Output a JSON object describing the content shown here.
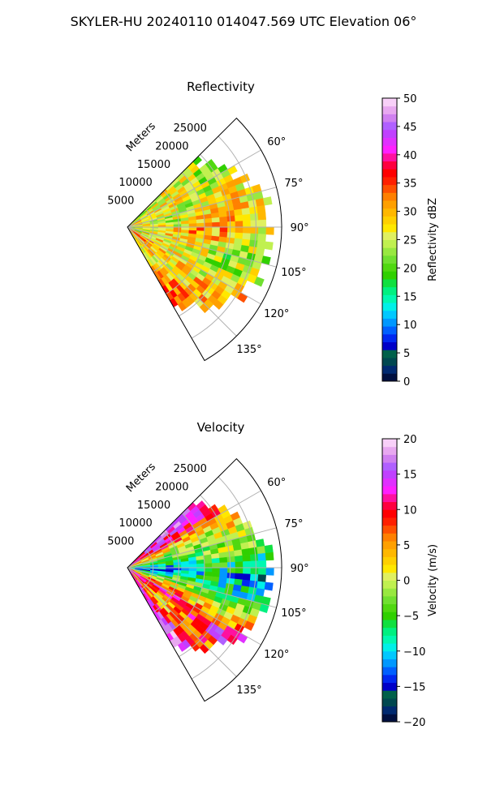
{
  "figure": {
    "suptitle": "SKYLER-HU  20240110  014047.569 UTC Elevation 06°"
  },
  "chart_data": [
    {
      "type": "heatmap",
      "projection": "polar-sector",
      "title": "Reflectivity",
      "radial_label": "Meters",
      "radial_ticks": [
        5000,
        10000,
        15000,
        20000,
        25000
      ],
      "radial_tick_labels": [
        "5000",
        "10000",
        "15000",
        "20000",
        "25000"
      ],
      "rlim": [
        0,
        30000
      ],
      "theta_range_deg": [
        45,
        150
      ],
      "theta_ticks_deg": [
        60,
        75,
        90,
        105,
        120,
        135
      ],
      "theta_tick_labels": [
        "60°",
        "75°",
        "90°",
        "105°",
        "120°",
        "135°"
      ],
      "grid": true,
      "colorbar": {
        "label": "Reflectivity dBZ",
        "vmin": 0,
        "vmax": 50,
        "ticks": [
          0,
          5,
          10,
          15,
          20,
          25,
          30,
          35,
          40,
          45,
          50
        ],
        "tick_labels": [
          "0",
          "5",
          "10",
          "15",
          "20",
          "25",
          "30",
          "35",
          "40",
          "45",
          "50"
        ],
        "colors": [
          "#001040",
          "#002a70",
          "#004850",
          "#00604a",
          "#0000c8",
          "#0028f0",
          "#0060ff",
          "#0098ff",
          "#00c8ff",
          "#00f0e8",
          "#00f8b0",
          "#00f080",
          "#10e040",
          "#30d000",
          "#50d810",
          "#70e030",
          "#98e840",
          "#c0f050",
          "#e0f060",
          "#ffe800",
          "#ffd000",
          "#ffb800",
          "#ffa000",
          "#ff8000",
          "#ff5000",
          "#ff2000",
          "#ff0000",
          "#ff0040",
          "#ff10a0",
          "#ff20ff",
          "#e030ff",
          "#c040ff",
          "#b060ff",
          "#d080f0",
          "#e8a8f0",
          "#f8d0f8"
        ]
      },
      "field_mean_by_azimuth": [
        {
          "azimuth": 55,
          "value": 24
        },
        {
          "azimuth": 65,
          "value": 27
        },
        {
          "azimuth": 75,
          "value": 26
        },
        {
          "azimuth": 85,
          "value": 29
        },
        {
          "azimuth": 95,
          "value": 28
        },
        {
          "azimuth": 105,
          "value": 25
        },
        {
          "azimuth": 115,
          "value": 26
        },
        {
          "azimuth": 125,
          "value": 30
        },
        {
          "azimuth": 135,
          "value": 29
        },
        {
          "azimuth": 145,
          "value": 30
        }
      ]
    },
    {
      "type": "heatmap",
      "projection": "polar-sector",
      "title": "Velocity",
      "radial_label": "Meters",
      "radial_ticks": [
        5000,
        10000,
        15000,
        20000,
        25000
      ],
      "radial_tick_labels": [
        "5000",
        "10000",
        "15000",
        "20000",
        "25000"
      ],
      "rlim": [
        0,
        30000
      ],
      "theta_range_deg": [
        45,
        150
      ],
      "theta_ticks_deg": [
        60,
        75,
        90,
        105,
        120,
        135
      ],
      "theta_tick_labels": [
        "60°",
        "75°",
        "90°",
        "105°",
        "120°",
        "135°"
      ],
      "grid": true,
      "colorbar": {
        "label": "Velocity (m/s)",
        "vmin": -20,
        "vmax": 20,
        "ticks": [
          -20,
          -15,
          -10,
          -5,
          0,
          5,
          10,
          15,
          20
        ],
        "tick_labels": [
          "−20",
          "−15",
          "−10",
          "−5",
          "0",
          "5",
          "10",
          "15",
          "20"
        ],
        "colors": [
          "#001040",
          "#002a70",
          "#004850",
          "#00604a",
          "#0000c8",
          "#0028f0",
          "#0060ff",
          "#0098ff",
          "#00c8ff",
          "#00f0e8",
          "#00f8b0",
          "#00f080",
          "#10e040",
          "#30d000",
          "#50d810",
          "#70e030",
          "#98e840",
          "#c0f050",
          "#e0f060",
          "#ffe800",
          "#ffd000",
          "#ffb800",
          "#ffa000",
          "#ff8000",
          "#ff5000",
          "#ff2000",
          "#ff0000",
          "#ff0040",
          "#ff10a0",
          "#ff20ff",
          "#e030ff",
          "#c040ff",
          "#b060ff",
          "#d080f0",
          "#e8a8f0",
          "#f8d0f8"
        ]
      },
      "field_mean_by_azimuth": [
        {
          "azimuth": 55,
          "value": 12
        },
        {
          "azimuth": 65,
          "value": 3
        },
        {
          "azimuth": 75,
          "value": -2
        },
        {
          "azimuth": 85,
          "value": -6
        },
        {
          "azimuth": 95,
          "value": -11
        },
        {
          "azimuth": 105,
          "value": -5
        },
        {
          "azimuth": 115,
          "value": 3
        },
        {
          "azimuth": 125,
          "value": 13
        },
        {
          "azimuth": 135,
          "value": 4
        },
        {
          "azimuth": 145,
          "value": 14
        }
      ]
    }
  ]
}
